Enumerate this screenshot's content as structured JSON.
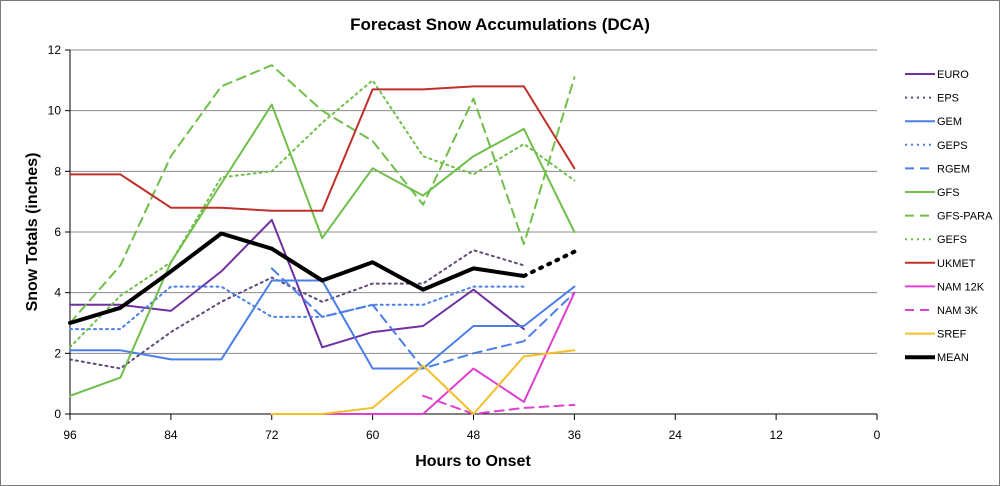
{
  "chart_data": {
    "type": "line",
    "title": "Forecast Snow Accumulations (DCA)",
    "xlabel": "Hours to Onset",
    "ylabel": "Snow Totals (inches)",
    "x_ticks": [
      "96",
      "84",
      "72",
      "60",
      "48",
      "36",
      "24",
      "12",
      "0"
    ],
    "y_ticks": [
      "0",
      "2",
      "4",
      "6",
      "8",
      "10",
      "12"
    ],
    "xlim": [
      96,
      0
    ],
    "ylim": [
      0,
      12
    ],
    "grid": "horizontal",
    "legend_position": "right",
    "series": [
      {
        "name": "EURO",
        "color": "#7030a0",
        "dash": "solid",
        "width": 2,
        "x": [
          96,
          90,
          84,
          78,
          72,
          66,
          60,
          54,
          48,
          42
        ],
        "y": [
          3.6,
          3.6,
          3.4,
          4.7,
          6.4,
          2.2,
          2.7,
          2.9,
          4.1,
          2.8
        ]
      },
      {
        "name": "EPS",
        "color": "#604a7b",
        "dash": "dot",
        "width": 2,
        "x": [
          96,
          90,
          84,
          78,
          72,
          66,
          60,
          54,
          48,
          42
        ],
        "y": [
          1.8,
          1.5,
          2.7,
          3.7,
          4.5,
          3.7,
          4.3,
          4.3,
          5.4,
          4.9
        ]
      },
      {
        "name": "GEM",
        "color": "#4a7ee8",
        "dash": "solid",
        "width": 2,
        "x": [
          96,
          90,
          84,
          78,
          72,
          66,
          60,
          54,
          48,
          42,
          36
        ],
        "y": [
          2.1,
          2.1,
          1.8,
          1.8,
          4.4,
          4.4,
          1.5,
          1.5,
          2.9,
          2.9,
          4.2
        ]
      },
      {
        "name": "GEPS",
        "color": "#4a7ee8",
        "dash": "dot",
        "width": 2,
        "x": [
          96,
          90,
          84,
          78,
          72,
          66,
          60,
          54,
          48,
          42
        ],
        "y": [
          2.8,
          2.8,
          4.2,
          4.2,
          3.2,
          3.2,
          3.6,
          3.6,
          4.2,
          4.2
        ]
      },
      {
        "name": "RGEM",
        "color": "#4a7ee8",
        "dash": "dash",
        "width": 2,
        "x": [
          72,
          66,
          60,
          54,
          48,
          42,
          36
        ],
        "y": [
          4.8,
          3.2,
          3.6,
          1.5,
          2.0,
          2.4,
          4.0
        ]
      },
      {
        "name": "GFS",
        "color": "#6fbf4a",
        "dash": "solid",
        "width": 2,
        "x": [
          96,
          90,
          84,
          78,
          72,
          66,
          60,
          54,
          48,
          42,
          36
        ],
        "y": [
          0.6,
          1.2,
          5.0,
          7.6,
          10.2,
          5.8,
          8.1,
          7.2,
          8.5,
          9.4,
          6.0
        ]
      },
      {
        "name": "GFS-PARA",
        "color": "#6fbf4a",
        "dash": "dash",
        "width": 2,
        "x": [
          96,
          90,
          84,
          78,
          72,
          66,
          60,
          54,
          48,
          42,
          36
        ],
        "y": [
          3.0,
          4.9,
          8.5,
          10.8,
          11.5,
          10.0,
          9.0,
          6.9,
          10.4,
          5.6,
          11.1
        ]
      },
      {
        "name": "GEFS",
        "color": "#6fbf4a",
        "dash": "dot",
        "width": 2,
        "x": [
          96,
          90,
          84,
          78,
          72,
          66,
          60,
          54,
          48,
          42,
          36
        ],
        "y": [
          2.2,
          3.9,
          5.0,
          7.8,
          8.0,
          9.6,
          11.0,
          8.5,
          7.9,
          8.9,
          7.7
        ]
      },
      {
        "name": "UKMET",
        "color": "#c0302a",
        "dash": "solid",
        "width": 2,
        "x": [
          96,
          90,
          84,
          78,
          72,
          66,
          60,
          54,
          48,
          42,
          36
        ],
        "y": [
          7.9,
          7.9,
          6.8,
          6.8,
          6.7,
          6.7,
          10.7,
          10.7,
          10.8,
          10.8,
          8.1
        ]
      },
      {
        "name": "NAM 12K",
        "color": "#e040d0",
        "dash": "solid",
        "width": 2,
        "x": [
          66,
          60,
          54,
          48,
          42,
          36
        ],
        "y": [
          0,
          0,
          0,
          1.5,
          0.4,
          4.0
        ]
      },
      {
        "name": "NAM 3K",
        "color": "#e040d0",
        "dash": "dash",
        "width": 2,
        "x": [
          54,
          48,
          42,
          36
        ],
        "y": [
          0.6,
          0.0,
          0.2,
          0.3
        ]
      },
      {
        "name": "SREF",
        "color": "#f4c02a",
        "dash": "solid",
        "width": 2,
        "x": [
          72,
          66,
          60,
          54,
          48,
          42,
          36
        ],
        "y": [
          0,
          0,
          0.2,
          1.6,
          0.0,
          1.9,
          2.1
        ]
      },
      {
        "name": "MEAN",
        "color": "#000000",
        "dash": "solid",
        "width": 4,
        "x": [
          96,
          90,
          84,
          78,
          72,
          66,
          60,
          54,
          48,
          42
        ],
        "y": [
          3.0,
          3.5,
          4.7,
          5.95,
          5.45,
          4.4,
          5.0,
          4.1,
          4.8,
          4.55
        ],
        "extension": {
          "x": [
            42,
            36
          ],
          "y": [
            4.55,
            5.35
          ],
          "dash": "dot"
        }
      }
    ]
  }
}
